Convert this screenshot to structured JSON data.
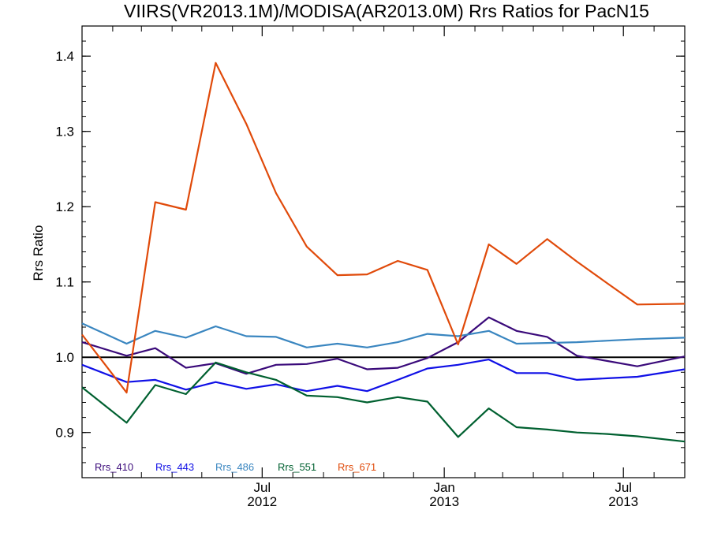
{
  "chart_data": {
    "type": "line",
    "title": "VIIRS(VR2013.1M)/MODISA(AR2013.0M)  Rrs Ratios for PacN15",
    "ylabel": "Rrs Ratio",
    "xlabel": "",
    "ylim": [
      0.84,
      1.44
    ],
    "xlim": [
      "2012-01-01",
      "2013-09-01"
    ],
    "yticks": [
      0.9,
      1.0,
      1.1,
      1.2,
      1.3,
      1.4
    ],
    "ytick_labels": [
      "0.9",
      "1.0",
      "1.1",
      "1.2",
      "1.3",
      "1.4"
    ],
    "xticks": [
      {
        "date": "2012-07-01",
        "top": "Jul",
        "bottom": "2012"
      },
      {
        "date": "2013-01-01",
        "top": "Jan",
        "bottom": "2013"
      },
      {
        "date": "2013-07-01",
        "top": "Jul",
        "bottom": "2013"
      }
    ],
    "reference_line": 1.0,
    "x": [
      "2012-01-01",
      "2012-02-15",
      "2012-03-15",
      "2012-04-15",
      "2012-05-15",
      "2012-06-15",
      "2012-07-15",
      "2012-08-15",
      "2012-09-15",
      "2012-10-15",
      "2012-11-15",
      "2012-12-15",
      "2013-01-15",
      "2013-02-15",
      "2013-03-15",
      "2013-04-15",
      "2013-05-15",
      "2013-06-15",
      "2013-07-15",
      "2013-09-01"
    ],
    "series": [
      {
        "name": "Rrs_410",
        "color": "#3a0a7a",
        "values": [
          1.02,
          1.002,
          1.012,
          0.986,
          0.992,
          0.978,
          0.99,
          0.991,
          0.998,
          0.984,
          0.986,
          0.999,
          1.02,
          1.053,
          1.035,
          1.027,
          1.002,
          0.995,
          0.988,
          1.001
        ]
      },
      {
        "name": "Rrs_443",
        "color": "#1010e6",
        "values": [
          0.99,
          0.967,
          0.97,
          0.957,
          0.967,
          0.958,
          0.964,
          0.955,
          0.962,
          0.955,
          0.97,
          0.985,
          0.99,
          0.997,
          0.979,
          0.979,
          0.97,
          0.972,
          0.974,
          0.984
        ]
      },
      {
        "name": "Rrs_486",
        "color": "#3a86c0",
        "values": [
          1.045,
          1.018,
          1.035,
          1.026,
          1.041,
          1.028,
          1.027,
          1.013,
          1.018,
          1.013,
          1.02,
          1.031,
          1.028,
          1.035,
          1.018,
          1.019,
          1.02,
          1.022,
          1.024,
          1.026
        ]
      },
      {
        "name": "Rrs_551",
        "color": "#006030",
        "values": [
          0.96,
          0.913,
          0.963,
          0.951,
          0.993,
          0.98,
          0.97,
          0.949,
          0.947,
          0.94,
          0.947,
          0.941,
          0.894,
          0.932,
          0.907,
          0.904,
          0.9,
          0.898,
          0.895,
          0.888
        ]
      },
      {
        "name": "Rrs_671",
        "color": "#e04a0a",
        "values": [
          1.03,
          0.953,
          1.206,
          1.196,
          1.391,
          1.31,
          1.218,
          1.147,
          1.109,
          1.11,
          1.128,
          1.116,
          1.017,
          1.15,
          1.124,
          1.157,
          1.127,
          1.098,
          1.07,
          1.071
        ]
      }
    ],
    "legend_position": "bottom-left",
    "grid": false
  }
}
